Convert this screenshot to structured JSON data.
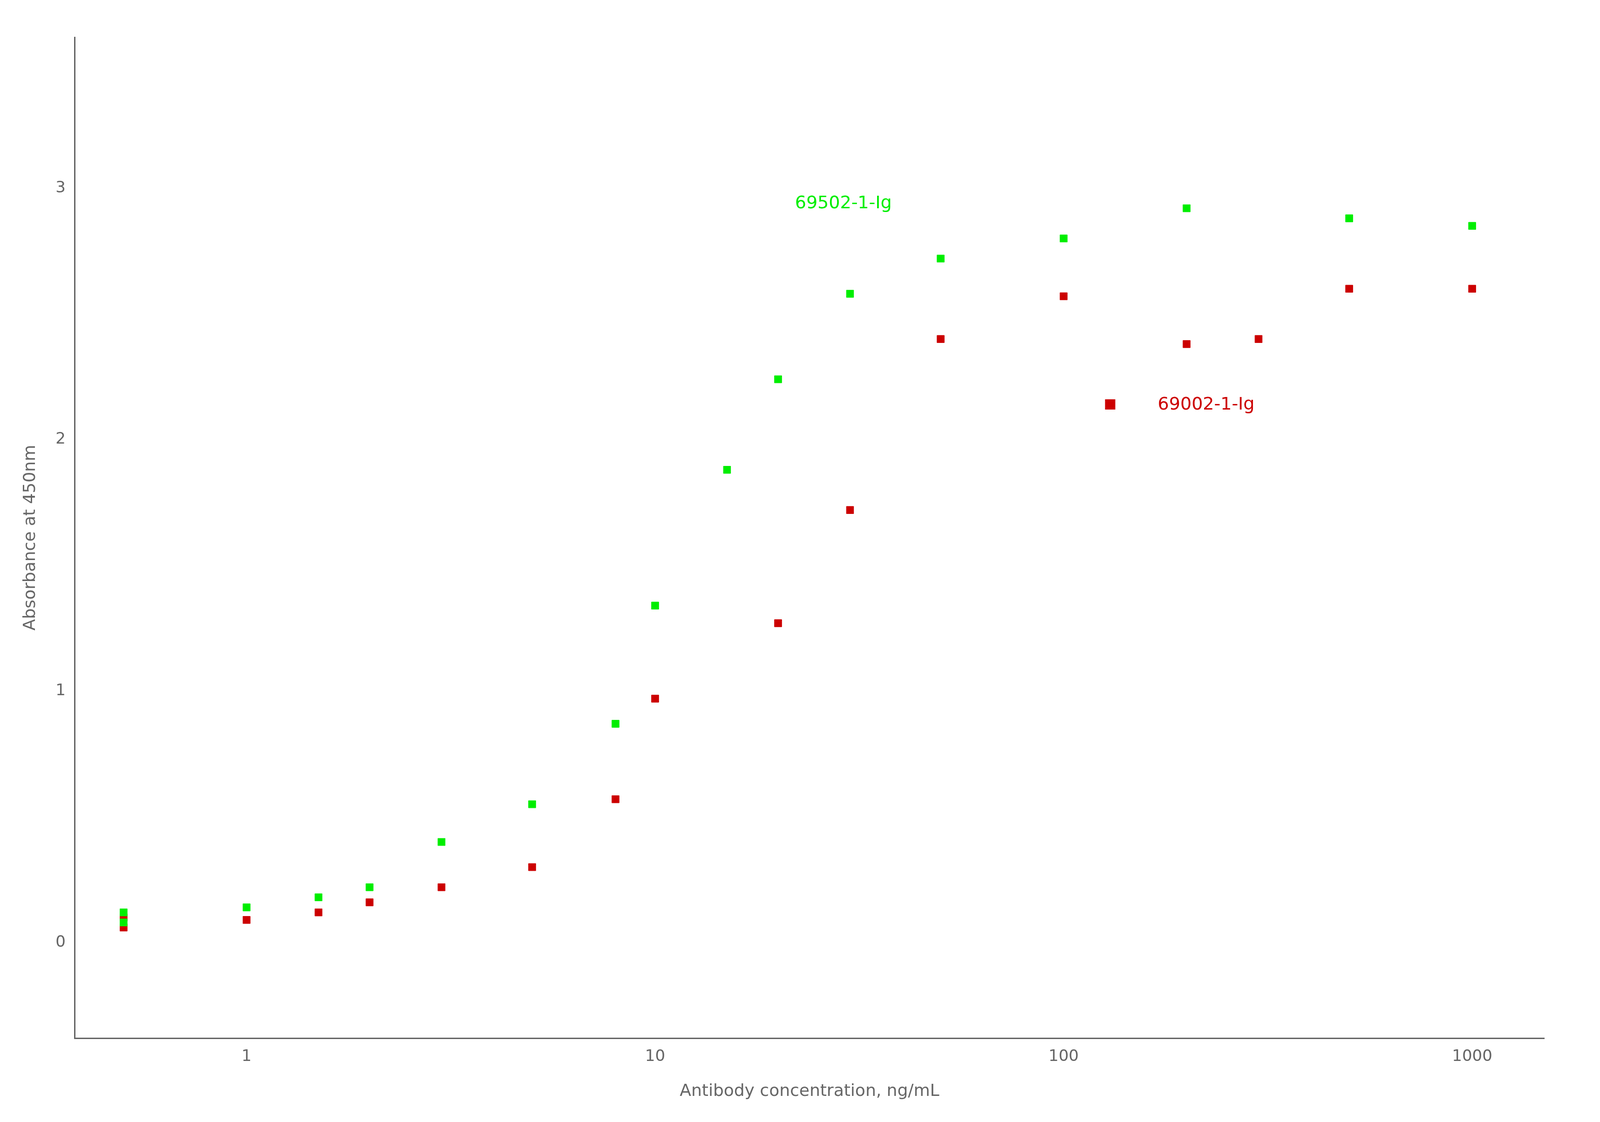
{
  "chart_data": {
    "type": "scatter",
    "xlabel": "Antibody concentration, ng/mL",
    "ylabel": "Absorbance at 450nm",
    "log": "x",
    "xlim": [
      0.38,
      1500
    ],
    "xticks": [
      1,
      10,
      100,
      1000
    ],
    "ylim": [
      -0.38,
      3.6
    ],
    "yticks": [
      0,
      1,
      2,
      3
    ],
    "grid": false,
    "series": [
      {
        "color": "#00ee00",
        "marker": "square",
        "x": [
          0.5,
          0.5,
          1.0,
          1.5,
          2.0,
          3.0,
          5.0,
          8.0,
          10.0,
          15.0,
          20.0,
          30.0,
          50.0,
          100.0,
          200.0,
          500.0,
          1000.0
        ],
        "values": [
          0.08,
          0.12,
          0.14,
          0.18,
          0.22,
          0.4,
          0.55,
          0.87,
          1.34,
          1.88,
          2.24,
          2.58,
          2.72,
          2.8,
          2.92,
          2.88,
          2.85
        ]
      },
      {
        "color": "#cc0000",
        "marker": "square",
        "x": [
          0.5,
          0.5,
          1.0,
          1.5,
          2.0,
          3.0,
          5.0,
          8.0,
          10.0,
          20.0,
          30.0,
          50.0,
          100.0,
          200.0,
          300.0,
          500.0,
          1000.0
        ],
        "values": [
          0.06,
          0.1,
          0.09,
          0.12,
          0.16,
          0.22,
          0.3,
          0.57,
          0.97,
          1.27,
          1.72,
          2.4,
          2.57,
          2.38,
          2.4,
          2.6,
          2.6
        ]
      }
    ],
    "annotations": [
      {
        "text": "69502-1-Ig",
        "x": 22,
        "y": 2.92,
        "color": "#00ee00"
      },
      {
        "text": "69002-1-Ig",
        "x": 170,
        "y": 2.12,
        "color": "#cc0000",
        "marker": "square",
        "marker_x": 130,
        "marker_y": 2.14
      }
    ]
  }
}
